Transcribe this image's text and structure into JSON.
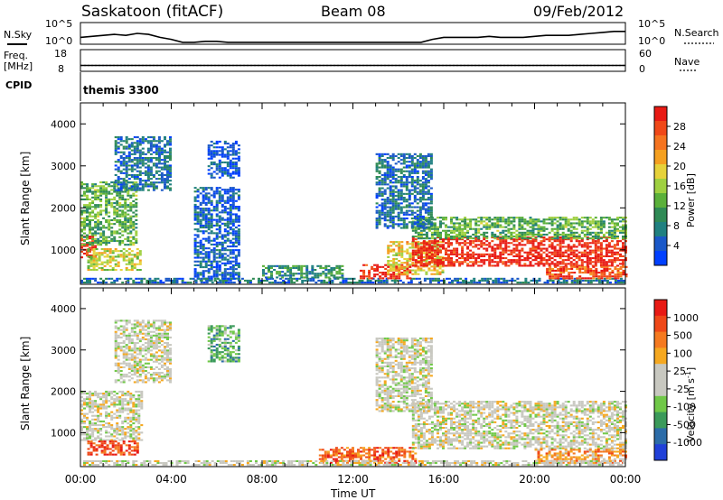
{
  "header": {
    "station": "Saskatoon (fitACF)",
    "beam": "Beam 08",
    "date": "09/Feb/2012"
  },
  "colors": {
    "sky_trace": "#000000",
    "white": "#ffffff"
  },
  "chart_data": [
    {
      "type": "line",
      "panel": "N.Sky / N.Search",
      "left_label": "N.Sky",
      "right_label": "N.Search",
      "left_ticks": [
        "10^5",
        "10^0"
      ],
      "right_ticks": [
        "10^5",
        "10^0"
      ],
      "series": [
        {
          "name": "N.Sky",
          "x": [
            0,
            0.5,
            1,
            1.5,
            2,
            2.5,
            3,
            3.5,
            4,
            4.5,
            5,
            5.5,
            6,
            6.5,
            7,
            7.5,
            8,
            8.5,
            9,
            9.5,
            10,
            10.5,
            11,
            11.5,
            12,
            12.5,
            13,
            13.5,
            14,
            14.5,
            15,
            15.5,
            16,
            16.5,
            17,
            17.5,
            18,
            18.5,
            19,
            19.5,
            20,
            20.5,
            21,
            21.5,
            22,
            22.5,
            23,
            23.5,
            24
          ],
          "values": [
            0.3,
            0.35,
            0.4,
            0.45,
            0.4,
            0.5,
            0.45,
            0.3,
            0.2,
            0.05,
            0.05,
            0.1,
            0.1,
            0.05,
            0.05,
            0.05,
            0.05,
            0.05,
            0.05,
            0.05,
            0.05,
            0.05,
            0.05,
            0.05,
            0.05,
            0.05,
            0.05,
            0.05,
            0.05,
            0.05,
            0.05,
            0.2,
            0.3,
            0.3,
            0.3,
            0.3,
            0.35,
            0.3,
            0.3,
            0.3,
            0.35,
            0.4,
            0.4,
            0.4,
            0.45,
            0.5,
            0.55,
            0.6,
            0.6
          ]
        }
      ]
    },
    {
      "type": "line",
      "panel": "Freq / Nave",
      "left_label": "Freq. [MHz]",
      "right_label": "Nave",
      "left_ticks": [
        "18",
        "8"
      ],
      "right_ticks": [
        "60",
        "0"
      ],
      "series": [
        {
          "name": "Freq.",
          "x": [
            0,
            24
          ],
          "values": [
            10.5,
            10.5
          ]
        },
        {
          "name": "Nave",
          "x": [
            0,
            24
          ],
          "values": [
            15,
            15
          ]
        }
      ]
    },
    {
      "type": "table",
      "panel": "CPID",
      "label": "CPID",
      "value": "themis 3300"
    },
    {
      "type": "heatmap",
      "panel": "Power",
      "ylabel": "Slant Range [km]",
      "colorbar_label": "Power [dB]",
      "colorbar_ticks": [
        "28",
        "24",
        "20",
        "16",
        "12",
        "8",
        "4"
      ],
      "colorbar_colors": [
        "#0040ff",
        "#1a58c8",
        "#208080",
        "#2f8a55",
        "#5ab03a",
        "#9fd040",
        "#e6d23a",
        "#f5a020",
        "#f57420",
        "#f04818",
        "#e81a14"
      ],
      "ylim": [
        180,
        4500
      ],
      "yticks": [
        1000,
        2000,
        3000,
        4000
      ],
      "regions": [
        {
          "t0": 0,
          "t1": 0.7,
          "r0": 800,
          "r1": 1300,
          "level": 0.9
        },
        {
          "t0": 0.3,
          "t1": 2.7,
          "r0": 500,
          "r1": 1000,
          "level": 0.55
        },
        {
          "t0": 0,
          "t1": 2.5,
          "r0": 1100,
          "r1": 2600,
          "level": 0.4
        },
        {
          "t0": 1.5,
          "t1": 4,
          "r0": 2400,
          "r1": 3700,
          "level": 0.2
        },
        {
          "t0": 5.6,
          "t1": 7,
          "r0": 2700,
          "r1": 3600,
          "level": 0.1
        },
        {
          "t0": 5,
          "t1": 7,
          "r0": 250,
          "r1": 2500,
          "level": 0.15
        },
        {
          "t0": 0,
          "t1": 24,
          "r0": 200,
          "r1": 330,
          "level": 0.2
        },
        {
          "t0": 8,
          "t1": 11.5,
          "r0": 320,
          "r1": 600,
          "level": 0.3
        },
        {
          "t0": 12.3,
          "t1": 14.5,
          "r0": 300,
          "r1": 650,
          "level": 0.95
        },
        {
          "t0": 13.5,
          "t1": 16,
          "r0": 400,
          "r1": 1200,
          "level": 0.6
        },
        {
          "t0": 14.6,
          "t1": 24,
          "r0": 600,
          "r1": 1300,
          "level": 0.95
        },
        {
          "t0": 14.6,
          "t1": 24,
          "r0": 1250,
          "r1": 1750,
          "level": 0.4
        },
        {
          "t0": 20.5,
          "t1": 24,
          "r0": 300,
          "r1": 600,
          "level": 0.85
        },
        {
          "t0": 13,
          "t1": 15.5,
          "r0": 1500,
          "r1": 3300,
          "level": 0.2
        }
      ]
    },
    {
      "type": "heatmap",
      "panel": "Velocity",
      "ylabel": "Slant Range [km]",
      "xlabel": "Time UT",
      "colorbar_label": "Velocity [m s^-1]",
      "colorbar_ticks": [
        "1000",
        "500",
        "100",
        "25",
        "-25",
        "-100",
        "-500",
        "-1000"
      ],
      "colorbar_colors": [
        "#2040d8",
        "#2c6ca8",
        "#3b9a5a",
        "#70c848",
        "#c8c8c0",
        "#c8c8c0",
        "#f5a820",
        "#f57a20",
        "#ef4818",
        "#e81a14"
      ],
      "ylim": [
        180,
        4500
      ],
      "yticks": [
        1000,
        2000,
        3000,
        4000
      ],
      "xticks": [
        "00:00",
        "04:00",
        "08:00",
        "12:00",
        "16:00",
        "20:00",
        "00:00"
      ],
      "regions": [
        {
          "t0": 0,
          "t1": 2.7,
          "r0": 800,
          "r1": 2000,
          "level": 0.5
        },
        {
          "t0": 1.5,
          "t1": 4,
          "r0": 2200,
          "r1": 3700,
          "level": 0.5
        },
        {
          "t0": 0.3,
          "t1": 2.5,
          "r0": 450,
          "r1": 800,
          "level": 0.85
        },
        {
          "t0": 5.6,
          "t1": 7,
          "r0": 2700,
          "r1": 3600,
          "level": 0.3
        },
        {
          "t0": 10.5,
          "t1": 14.8,
          "r0": 250,
          "r1": 650,
          "level": 0.8
        },
        {
          "t0": 14.6,
          "t1": 24,
          "r0": 600,
          "r1": 1750,
          "level": 0.5
        },
        {
          "t0": 20,
          "t1": 24,
          "r0": 250,
          "r1": 600,
          "level": 0.7
        },
        {
          "t0": 0,
          "t1": 24,
          "r0": 200,
          "r1": 330,
          "level": 0.5
        },
        {
          "t0": 13,
          "t1": 15.5,
          "r0": 1500,
          "r1": 3300,
          "level": 0.5
        }
      ]
    }
  ]
}
